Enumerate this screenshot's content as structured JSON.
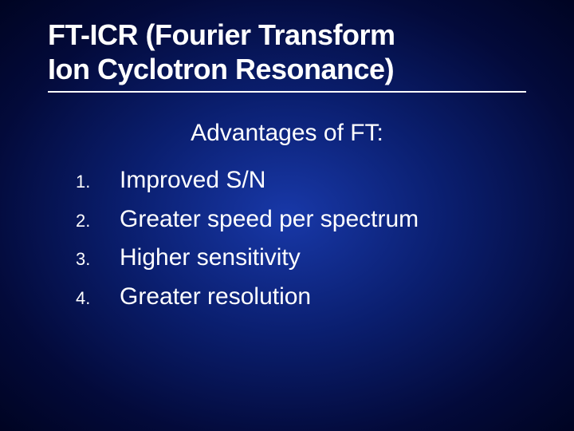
{
  "slide": {
    "title_line1": "FT-ICR (Fourier Transform",
    "title_line2": "Ion Cyclotron Resonance)",
    "subtitle": "Advantages of FT:",
    "items": [
      {
        "num": "1.",
        "text": "Improved S/N"
      },
      {
        "num": "2.",
        "text": "Greater speed per spectrum"
      },
      {
        "num": "3.",
        "text": "Higher sensitivity"
      },
      {
        "num": "4.",
        "text": "Greater resolution"
      }
    ],
    "colors": {
      "text": "#ffffff",
      "bg_center": "#1838a8",
      "bg_mid": "#0a1e6e",
      "bg_outer": "#030a3a",
      "bg_edge": "#000422"
    },
    "typography": {
      "title_fontsize": 36,
      "subtitle_fontsize": 30,
      "list_fontsize": 30,
      "number_fontsize": 22,
      "font_family": "Verdana"
    }
  }
}
